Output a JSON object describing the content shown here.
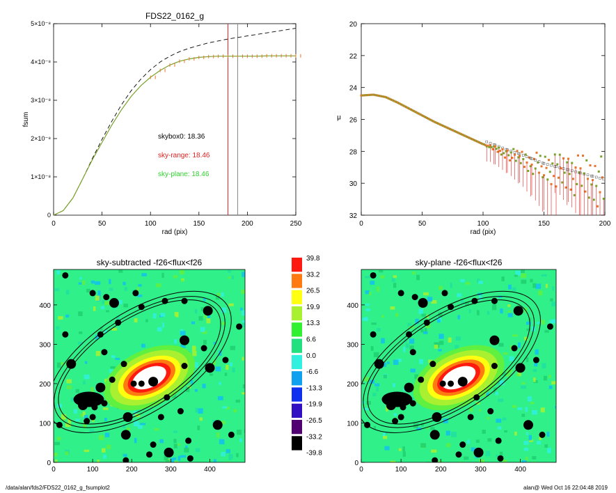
{
  "footer": {
    "path": "/data/alan/fds2/FDS22_0162_g_fsumplot2",
    "user_date": "alan@  Wed Oct 16 22:04:48 2019"
  },
  "colors": {
    "data_orange": "#e8742c",
    "data_green": "#7aa22a",
    "sky_range_red": "#e02020",
    "sky_plane_green": "#30d030",
    "dashed_black": "#000000",
    "grey_marker": "#888888"
  },
  "chart_data": [
    {
      "type": "line",
      "title": "FDS22_0162_g",
      "xlabel": "rad (pix)",
      "ylabel": "fsum",
      "xlim": [
        0,
        250
      ],
      "ylim": [
        0,
        5e-08
      ],
      "x_ticks": [
        "0",
        "50",
        "100",
        "150",
        "200",
        "250"
      ],
      "y_ticks": [
        "0",
        "1×10⁻⁸",
        "2×10⁻⁸",
        "3×10⁻⁸",
        "4×10⁻⁸",
        "5×10⁻⁸"
      ],
      "y_tick_values": [
        0,
        1e-08,
        2e-08,
        3e-08,
        4e-08,
        5e-08
      ],
      "vertical_lines": [
        {
          "x": 180,
          "color": "#e02020"
        },
        {
          "x": 190,
          "color": "#888888"
        }
      ],
      "annotations": [
        {
          "text": "skybox0: 18.36",
          "color": "#000000"
        },
        {
          "text": "sky-range: 18.46",
          "color": "#e02020"
        },
        {
          "text": "sky-plane: 18.46",
          "color": "#30d030"
        }
      ],
      "series": [
        {
          "style": "solid-with-markers",
          "x": [
            0,
            10,
            20,
            30,
            40,
            50,
            60,
            70,
            80,
            90,
            100,
            110,
            120,
            130,
            140,
            150,
            160,
            170,
            180,
            190,
            200,
            210,
            220,
            230,
            240,
            250
          ],
          "y": [
            0,
            1.2e-09,
            4.5e-09,
            9.5e-09,
            1.45e-08,
            1.9e-08,
            2.35e-08,
            2.75e-08,
            3.1e-08,
            3.38e-08,
            3.6e-08,
            3.78e-08,
            3.92e-08,
            4.02e-08,
            4.08e-08,
            4.12e-08,
            4.14e-08,
            4.15e-08,
            4.15e-08,
            4.15e-08,
            4.15e-08,
            4.15e-08,
            4.16e-08,
            4.16e-08,
            4.16e-08,
            4.16e-08
          ]
        },
        {
          "style": "dashed",
          "x": [
            0,
            10,
            20,
            30,
            40,
            50,
            60,
            70,
            80,
            90,
            100,
            110,
            120,
            130,
            140,
            150,
            160,
            170,
            180,
            190,
            200,
            210,
            220,
            230,
            240,
            250
          ],
          "y": [
            0,
            1.2e-09,
            4.5e-09,
            9.5e-09,
            1.48e-08,
            1.98e-08,
            2.45e-08,
            2.88e-08,
            3.25e-08,
            3.55e-08,
            3.8e-08,
            4e-08,
            4.15e-08,
            4.27e-08,
            4.36e-08,
            4.43e-08,
            4.5e-08,
            4.55e-08,
            4.6e-08,
            4.64e-08,
            4.68e-08,
            4.72e-08,
            4.76e-08,
            4.8e-08,
            4.84e-08,
            4.88e-08
          ]
        }
      ]
    },
    {
      "type": "scatter",
      "xlabel": "rad (pix)",
      "ylabel": "μ",
      "xlim": [
        0,
        200
      ],
      "ylim": [
        32,
        20
      ],
      "x_ticks": [
        "0",
        "50",
        "100",
        "150",
        "200"
      ],
      "y_ticks": [
        "20",
        "22",
        "24",
        "26",
        "28",
        "30",
        "32"
      ],
      "series": [
        {
          "style": "points",
          "x": [
            0,
            10,
            20,
            30,
            40,
            50,
            60,
            70,
            80,
            90,
            100,
            110,
            120,
            130,
            140,
            150,
            160,
            170,
            180,
            190,
            200
          ],
          "y": [
            24.5,
            24.45,
            24.6,
            24.95,
            25.35,
            25.75,
            26.15,
            26.5,
            26.85,
            27.2,
            27.55,
            27.85,
            28.15,
            28.4,
            28.7,
            29.0,
            29.2,
            29.4,
            29.6,
            29.8,
            30.0
          ]
        }
      ]
    },
    {
      "type": "heatmap",
      "title": "sky-subtracted -f26<flux<f26",
      "xlim": [
        0,
        490
      ],
      "ylim": [
        0,
        490
      ],
      "x_ticks": [
        "0",
        "100",
        "200",
        "300",
        "400"
      ],
      "y_ticks": [
        "0",
        "100",
        "200",
        "300",
        "400"
      ]
    },
    {
      "type": "heatmap",
      "title": "sky-plane -f26<flux<f26",
      "xlim": [
        0,
        490
      ],
      "ylim": [
        0,
        490
      ],
      "x_ticks": [
        "0",
        "100",
        "200",
        "300",
        "400"
      ],
      "y_ticks": [
        "0",
        "100",
        "200",
        "300",
        "400"
      ]
    },
    {
      "type": "colorbar",
      "labels": [
        "39.8",
        "33.2",
        "26.5",
        "19.9",
        "13.3",
        "6.6",
        "0.0",
        "-6.6",
        "-13.3",
        "-19.9",
        "-26.5",
        "-33.2",
        "-39.8"
      ],
      "colors": [
        "#ff1a10",
        "#ff7a10",
        "#ffff10",
        "#a8f030",
        "#30f030",
        "#20e080",
        "#30f0e0",
        "#10a0f0",
        "#1030f0",
        "#3010c0",
        "#500070",
        "#000000"
      ]
    }
  ]
}
